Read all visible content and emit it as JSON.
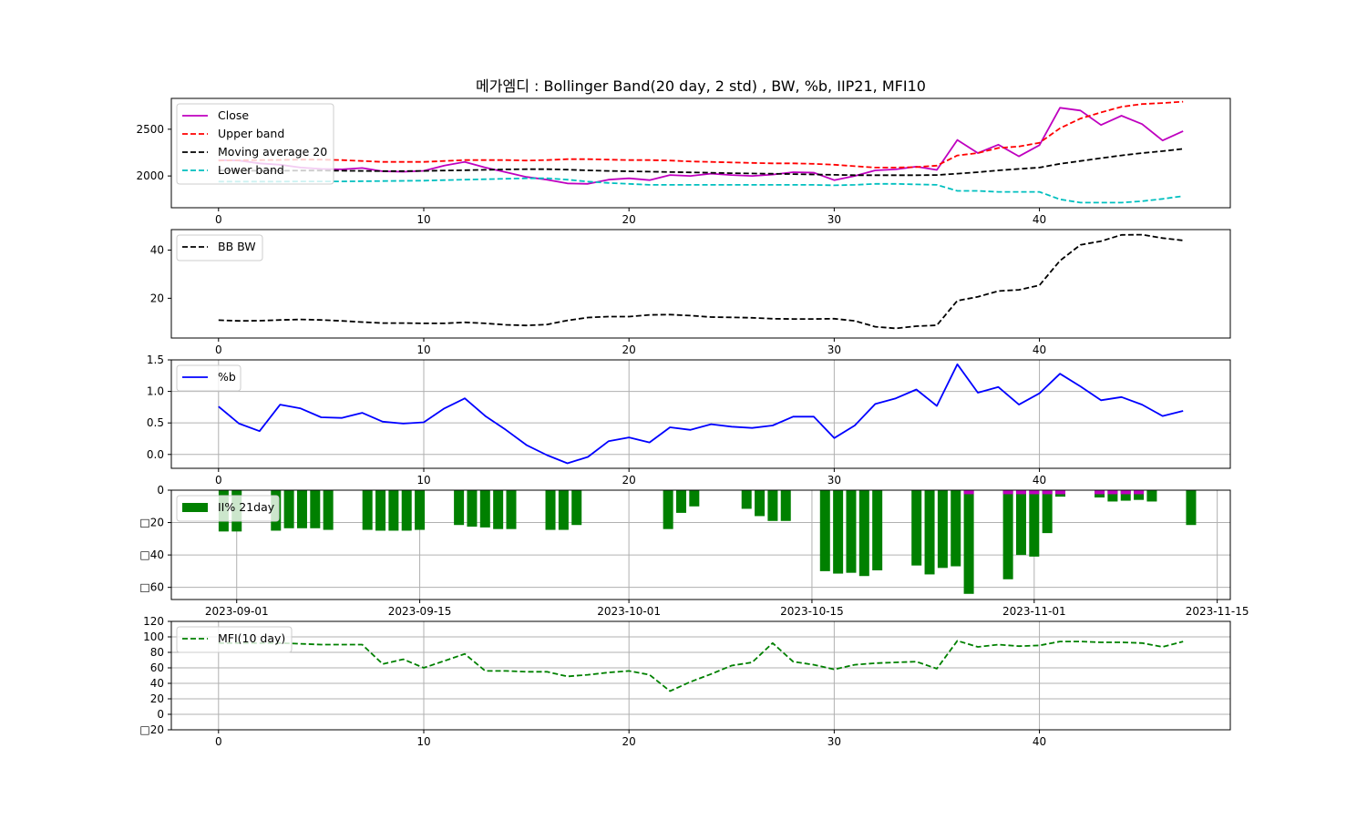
{
  "title": "메가엠디 : Bollinger Band(20 day, 2 std) , BW, %b, IIP21, MFI10",
  "chart_data": [
    {
      "type": "line",
      "id": "bollinger",
      "legend": "top-left",
      "grid": false,
      "xlim": [
        -2.3,
        49.3
      ],
      "ylim": [
        1660,
        2830
      ],
      "xticks": [
        0,
        10,
        20,
        30,
        40
      ],
      "yticks": [
        2000,
        2500
      ],
      "series": [
        {
          "name": "Close",
          "color": "#bf00bf",
          "dash": false,
          "values": [
            2170,
            2165,
            2135,
            2120,
            2090,
            2075,
            2070,
            2085,
            2050,
            2045,
            2055,
            2110,
            2150,
            2090,
            2040,
            1990,
            1960,
            1920,
            1915,
            1960,
            1975,
            1955,
            2010,
            2000,
            2025,
            2010,
            2000,
            2015,
            2040,
            2035,
            1955,
            2000,
            2060,
            2070,
            2100,
            2065,
            2385,
            2245,
            2335,
            2210,
            2330,
            2730,
            2700,
            2545,
            2645,
            2555,
            2380,
            2480
          ]
        },
        {
          "name": "Upper band",
          "color": "#ff0000",
          "dash": true,
          "values": [
            2165,
            2168,
            2170,
            2172,
            2175,
            2175,
            2170,
            2160,
            2150,
            2150,
            2150,
            2160,
            2170,
            2170,
            2170,
            2165,
            2170,
            2180,
            2180,
            2175,
            2170,
            2170,
            2165,
            2155,
            2150,
            2145,
            2140,
            2135,
            2135,
            2130,
            2120,
            2105,
            2090,
            2090,
            2095,
            2110,
            2220,
            2245,
            2300,
            2315,
            2355,
            2510,
            2615,
            2680,
            2740,
            2770,
            2780,
            2795
          ]
        },
        {
          "name": "Moving average 20",
          "color": "#000000",
          "dash": true,
          "values": [
            2060,
            2058,
            2056,
            2056,
            2058,
            2058,
            2056,
            2054,
            2052,
            2052,
            2054,
            2058,
            2062,
            2066,
            2070,
            2072,
            2072,
            2068,
            2060,
            2054,
            2050,
            2046,
            2042,
            2038,
            2034,
            2030,
            2027,
            2024,
            2020,
            2016,
            2012,
            2008,
            2008,
            2008,
            2008,
            2010,
            2025,
            2040,
            2060,
            2075,
            2090,
            2130,
            2160,
            2190,
            2220,
            2245,
            2265,
            2290
          ]
        },
        {
          "name": "Lower band",
          "color": "#00bfbf",
          "dash": true,
          "values": [
            1940,
            1940,
            1940,
            1940,
            1942,
            1942,
            1942,
            1944,
            1946,
            1948,
            1950,
            1955,
            1960,
            1965,
            1970,
            1975,
            1975,
            1960,
            1940,
            1925,
            1915,
            1905,
            1905,
            1905,
            1905,
            1905,
            1905,
            1905,
            1905,
            1905,
            1900,
            1905,
            1915,
            1915,
            1910,
            1905,
            1840,
            1840,
            1830,
            1830,
            1830,
            1750,
            1715,
            1715,
            1715,
            1730,
            1755,
            1785
          ]
        }
      ]
    },
    {
      "type": "line",
      "id": "bbw",
      "legend": "top-left",
      "grid": false,
      "xlim": [
        -2.3,
        49.3
      ],
      "ylim": [
        3.5,
        48.5
      ],
      "xticks": [
        0,
        10,
        20,
        30,
        40
      ],
      "yticks": [
        20,
        40
      ],
      "series": [
        {
          "name": "BB BW",
          "color": "#000000",
          "dash": true,
          "values": [
            10.9,
            10.6,
            10.7,
            11.0,
            11.2,
            11.0,
            10.6,
            10.1,
            9.7,
            9.7,
            9.6,
            9.6,
            10.0,
            9.6,
            9.0,
            8.7,
            9.1,
            10.8,
            12.0,
            12.4,
            12.4,
            13.1,
            13.2,
            12.8,
            12.2,
            12.1,
            11.9,
            11.5,
            11.4,
            11.4,
            11.5,
            10.6,
            8.2,
            7.5,
            8.4,
            8.8,
            19.0,
            20.6,
            23.0,
            23.5,
            25.4,
            35.6,
            42.2,
            43.7,
            46.3,
            46.4,
            45.0,
            44.0
          ]
        }
      ]
    },
    {
      "type": "line",
      "id": "pctb",
      "legend": "top-left",
      "grid": true,
      "xlim": [
        -2.3,
        49.3
      ],
      "ylim": [
        -0.22,
        1.5
      ],
      "xticks": [
        0,
        10,
        20,
        30,
        40
      ],
      "yticks": [
        0.0,
        0.5,
        1.0,
        1.5
      ],
      "series": [
        {
          "name": "%b",
          "color": "#0000ff",
          "dash": false,
          "values": [
            0.76,
            0.49,
            0.37,
            0.79,
            0.73,
            0.59,
            0.58,
            0.66,
            0.52,
            0.49,
            0.51,
            0.73,
            0.89,
            0.61,
            0.39,
            0.15,
            -0.01,
            -0.14,
            -0.04,
            0.21,
            0.27,
            0.19,
            0.43,
            0.39,
            0.48,
            0.44,
            0.42,
            0.46,
            0.6,
            0.6,
            0.26,
            0.46,
            0.8,
            0.89,
            1.03,
            0.77,
            1.43,
            0.98,
            1.07,
            0.79,
            0.97,
            1.28,
            1.08,
            0.86,
            0.91,
            0.79,
            0.61,
            0.69
          ]
        }
      ]
    },
    {
      "type": "bar",
      "id": "iip",
      "legend": "top-left",
      "grid": true,
      "ylim": [
        -67.5,
        0
      ],
      "yticks": [
        0,
        -20,
        -40,
        -60
      ],
      "ytick_labels": [
        "0",
        "□20",
        "□40",
        "□60"
      ],
      "x_dates": [
        "2023-09-01",
        "2023-09-15",
        "2023-10-01",
        "2023-10-15",
        "2023-11-01",
        "2023-11-15"
      ],
      "bar_color": "#008000",
      "accent_color": "#bf00bf",
      "series": [
        {
          "name": "II% 21day",
          "bars": [
            {
              "x": "2023-08-31",
              "y": -25.5
            },
            {
              "x": "2023-09-01",
              "y": -25.5
            },
            {
              "x": "2023-09-04",
              "y": -25
            },
            {
              "x": "2023-09-05",
              "y": -23.5
            },
            {
              "x": "2023-09-06",
              "y": -23.5
            },
            {
              "x": "2023-09-07",
              "y": -23.5
            },
            {
              "x": "2023-09-08",
              "y": -24.5
            },
            {
              "x": "2023-09-11",
              "y": -24.5
            },
            {
              "x": "2023-09-12",
              "y": -25
            },
            {
              "x": "2023-09-13",
              "y": -25
            },
            {
              "x": "2023-09-14",
              "y": -25
            },
            {
              "x": "2023-09-15",
              "y": -24.5
            },
            {
              "x": "2023-09-18",
              "y": -21.5
            },
            {
              "x": "2023-09-19",
              "y": -22.5
            },
            {
              "x": "2023-09-20",
              "y": -23
            },
            {
              "x": "2023-09-21",
              "y": -24
            },
            {
              "x": "2023-09-22",
              "y": -24
            },
            {
              "x": "2023-09-25",
              "y": -24.5
            },
            {
              "x": "2023-09-26",
              "y": -24.5
            },
            {
              "x": "2023-09-27",
              "y": -21.5
            },
            {
              "x": "2023-10-04",
              "y": -24
            },
            {
              "x": "2023-10-05",
              "y": -14
            },
            {
              "x": "2023-10-06",
              "y": -10
            },
            {
              "x": "2023-10-10",
              "y": -11.5
            },
            {
              "x": "2023-10-11",
              "y": -16
            },
            {
              "x": "2023-10-12",
              "y": -19
            },
            {
              "x": "2023-10-13",
              "y": -19
            },
            {
              "x": "2023-10-16",
              "y": -50
            },
            {
              "x": "2023-10-17",
              "y": -51.5
            },
            {
              "x": "2023-10-18",
              "y": -51
            },
            {
              "x": "2023-10-19",
              "y": -53
            },
            {
              "x": "2023-10-20",
              "y": -49.5
            },
            {
              "x": "2023-10-23",
              "y": -46.5
            },
            {
              "x": "2023-10-24",
              "y": -52
            },
            {
              "x": "2023-10-25",
              "y": -48
            },
            {
              "x": "2023-10-26",
              "y": -47
            },
            {
              "x": "2023-10-27",
              "y": -64
            },
            {
              "x": "2023-10-30",
              "y": -55
            },
            {
              "x": "2023-10-31",
              "y": -40
            },
            {
              "x": "2023-11-01",
              "y": -41
            },
            {
              "x": "2023-11-02",
              "y": -26.5
            },
            {
              "x": "2023-11-03",
              "y": -4
            },
            {
              "x": "2023-11-06",
              "y": -4.5
            },
            {
              "x": "2023-11-07",
              "y": -7
            },
            {
              "x": "2023-11-08",
              "y": -6.5
            },
            {
              "x": "2023-11-09",
              "y": -6
            },
            {
              "x": "2023-11-10",
              "y": -7
            },
            {
              "x": "2023-11-13",
              "y": -21.5
            }
          ]
        },
        {
          "name": "",
          "accent_bars": [
            {
              "x": "2023-10-27",
              "y": -2.5
            },
            {
              "x": "2023-10-30",
              "y": -2.5
            },
            {
              "x": "2023-10-31",
              "y": -2.5
            },
            {
              "x": "2023-11-01",
              "y": -2.5
            },
            {
              "x": "2023-11-02",
              "y": -2.5
            },
            {
              "x": "2023-11-03",
              "y": -2.5
            },
            {
              "x": "2023-11-06",
              "y": -2.5
            },
            {
              "x": "2023-11-07",
              "y": -2.5
            },
            {
              "x": "2023-11-08",
              "y": -2.5
            },
            {
              "x": "2023-11-09",
              "y": -2.5
            }
          ]
        }
      ]
    },
    {
      "type": "line",
      "id": "mfi",
      "legend": "top-left",
      "grid": true,
      "xlim": [
        -2.3,
        49.3
      ],
      "ylim": [
        -20,
        120
      ],
      "xticks": [
        0,
        10,
        20,
        30,
        40
      ],
      "yticks": [
        -20,
        0,
        20,
        40,
        60,
        80,
        100,
        120
      ],
      "ytick_labels": [
        "□20",
        "0",
        "20",
        "40",
        "60",
        "80",
        "100",
        "120"
      ],
      "series": [
        {
          "name": "MFI(10 day)",
          "color": "#008000",
          "dash": true,
          "values": [
            92,
            92,
            92,
            92,
            91,
            90,
            90,
            90,
            65,
            71,
            60,
            69,
            78,
            56,
            56,
            55,
            55,
            49,
            51,
            54,
            56,
            51,
            30,
            42,
            52,
            63,
            67,
            92,
            68,
            64,
            58,
            64,
            66,
            67,
            68,
            59,
            95,
            87,
            90,
            88,
            89,
            94,
            94,
            93,
            93,
            92,
            87,
            94
          ]
        }
      ]
    }
  ]
}
